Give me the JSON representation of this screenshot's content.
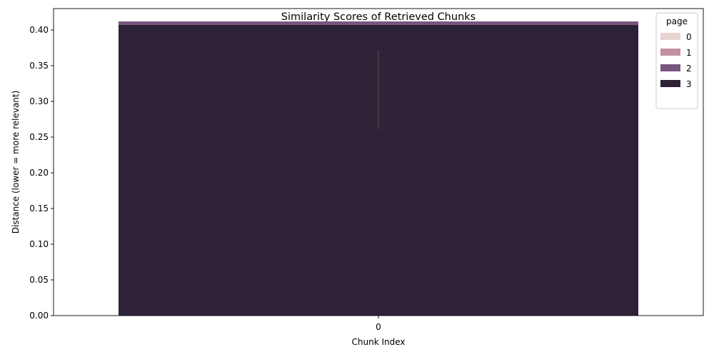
{
  "chart_data": {
    "type": "bar",
    "title": "Similarity Scores of Retrieved Chunks",
    "xlabel": "Chunk Index",
    "ylabel": "Distance (lower = more relevant)",
    "categories": [
      "0"
    ],
    "ylim": [
      0,
      0.43
    ],
    "yticks": [
      0.0,
      0.05,
      0.1,
      0.15,
      0.2,
      0.25,
      0.3,
      0.35,
      0.4
    ],
    "grid": false,
    "legend": {
      "title": "page",
      "placement": "top-right"
    },
    "series": [
      {
        "name": "0",
        "color": "#e8d3d1",
        "values": [
          0.0
        ]
      },
      {
        "name": "1",
        "color": "#c3909f",
        "values": [
          0.0
        ]
      },
      {
        "name": "2",
        "color": "#7a5580",
        "values": [
          0.412
        ]
      },
      {
        "name": "3",
        "color": "#2e2239",
        "values": [
          0.407
        ]
      }
    ],
    "error_bar": {
      "category": "0",
      "low": 0.261,
      "high": 0.372,
      "color": "#3a3a3a"
    }
  }
}
